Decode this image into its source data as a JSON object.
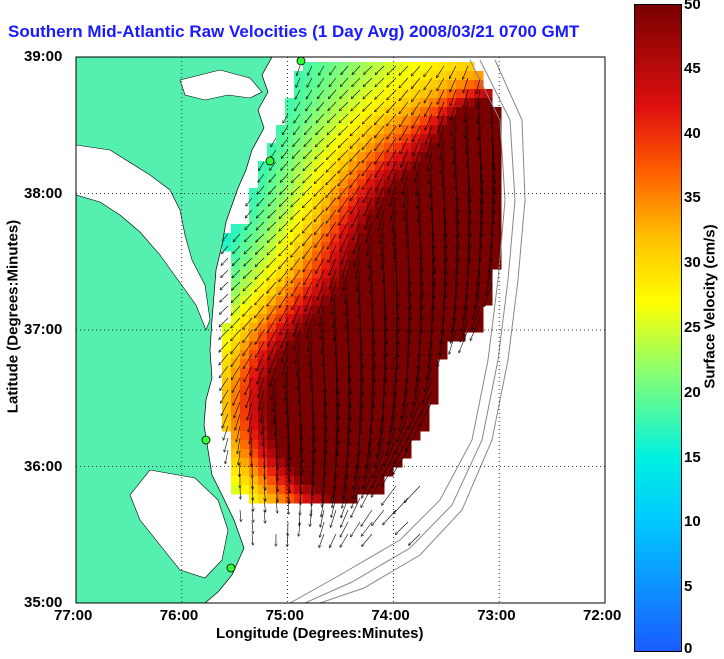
{
  "title": "Southern Mid-Atlantic Raw Velocities (1 Day Avg) 2008/03/21 0700 GMT",
  "chart_data": {
    "type": "heatmap",
    "xlabel": "Longitude (Degrees:Minutes)",
    "ylabel": "Latitude (Degrees:Minutes)",
    "x_ticks": [
      "77:00",
      "76:00",
      "75:00",
      "74:00",
      "73:00",
      "72:00"
    ],
    "y_ticks": [
      "39:00",
      "38:00",
      "37:00",
      "36:00",
      "35:00"
    ],
    "xlim": [
      -77,
      -72
    ],
    "ylim": [
      35,
      39
    ],
    "grid": true,
    "colorbar": {
      "label": "Surface Velocity (cm/s)",
      "range": [
        0,
        50
      ],
      "ticks": [
        "0",
        "5",
        "10",
        "15",
        "20",
        "25",
        "30",
        "35",
        "40",
        "45",
        "50"
      ]
    },
    "land_color": "#55f0b0",
    "station_color": "#33ff33"
  }
}
